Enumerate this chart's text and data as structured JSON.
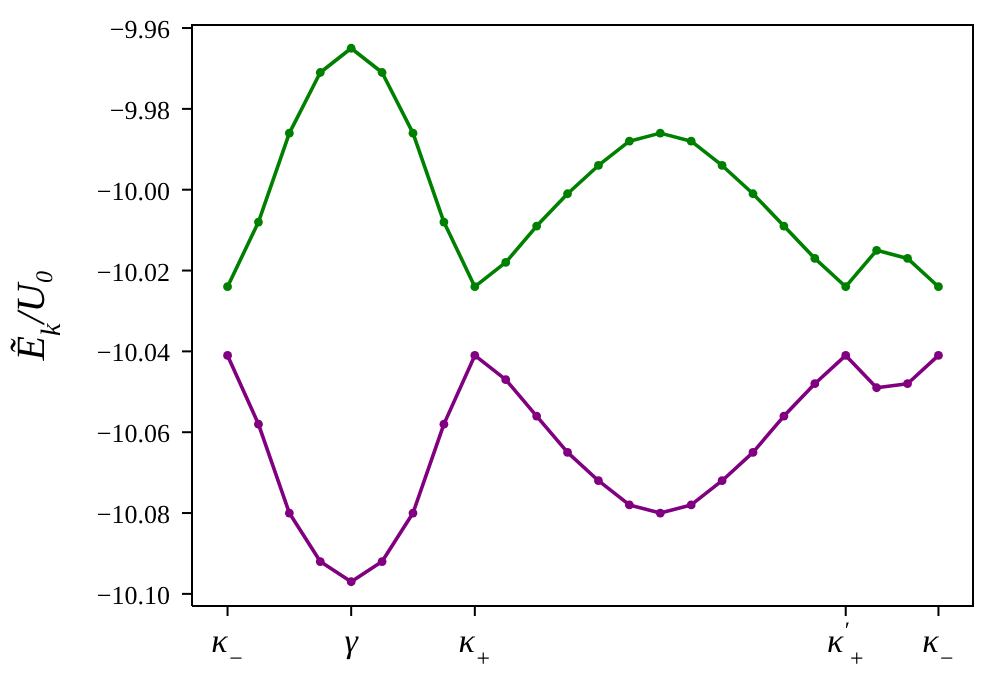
{
  "chart_data": {
    "type": "line",
    "ylabel": "Ẽ$_{k}$/U₀",
    "categories": [
      "κ$_{−}$",
      null,
      null,
      null,
      "γ",
      null,
      null,
      null,
      "κ$_{+}$",
      null,
      null,
      null,
      null,
      null,
      null,
      null,
      null,
      null,
      null,
      null,
      "κ$^{′}$$_{+}$",
      null,
      null,
      "κ$_{−}$"
    ],
    "ylim": [
      -10.103,
      -9.959
    ],
    "yticks": [
      {
        "value": -10.1,
        "label": "−10.10"
      },
      {
        "value": -10.08,
        "label": "−10.08"
      },
      {
        "value": -10.06,
        "label": "−10.06"
      },
      {
        "value": -10.04,
        "label": "−10.04"
      },
      {
        "value": -10.02,
        "label": "−10.02"
      },
      {
        "value": -10.0,
        "label": "−10.00"
      },
      {
        "value": -9.98,
        "label": "−9.98"
      },
      {
        "value": -9.96,
        "label": "−9.96"
      }
    ],
    "grid": false,
    "legend": false,
    "marker": "circle",
    "line_style": "solid",
    "series": [
      {
        "color": "#008000",
        "values": [
          -10.024,
          -10.008,
          -9.986,
          -9.971,
          -9.965,
          -9.971,
          -9.986,
          -10.008,
          -10.024,
          -10.018,
          -10.009,
          -10.001,
          -9.994,
          -9.988,
          -9.986,
          -9.988,
          -9.994,
          -10.001,
          -10.009,
          -10.017,
          -10.024,
          -10.015,
          -10.017,
          -10.024
        ]
      },
      {
        "color": "#800080",
        "values": [
          -10.041,
          -10.058,
          -10.08,
          -10.092,
          -10.097,
          -10.092,
          -10.08,
          -10.058,
          -10.041,
          -10.047,
          -10.056,
          -10.065,
          -10.072,
          -10.078,
          -10.08,
          -10.078,
          -10.072,
          -10.065,
          -10.056,
          -10.048,
          -10.041,
          -10.049,
          -10.048,
          -10.041
        ]
      }
    ]
  }
}
